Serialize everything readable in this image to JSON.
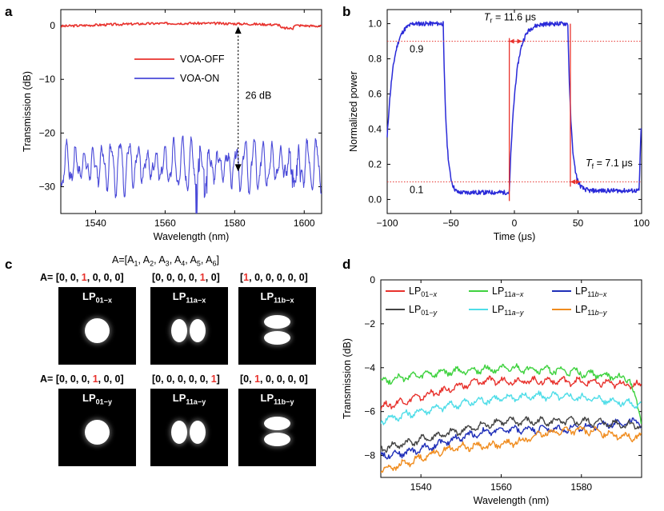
{
  "figure": {
    "panel_labels": [
      "a",
      "b",
      "c",
      "d"
    ]
  },
  "chart_data": [
    {
      "panel": "a",
      "type": "line",
      "xlabel": "Wavelength (nm)",
      "ylabel": "Transmission (dB)",
      "xlim": [
        1530,
        1605
      ],
      "ylim": [
        -35,
        3
      ],
      "xticks": [
        1540,
        1560,
        1580,
        1600
      ],
      "yticks": [
        0,
        -10,
        -20,
        -30
      ],
      "ytick_labels": [
        "0",
        "−10",
        "−20",
        "−30"
      ],
      "legend_position": "upper-middle",
      "series": [
        {
          "name": "VOA-OFF",
          "color": "#e8322d",
          "baseline": 0,
          "pattern": "flat-noisy"
        },
        {
          "name": "VOA-ON",
          "color": "#4a4ad8",
          "baseline": -26,
          "pattern": "oscillating"
        }
      ],
      "annotation": {
        "text": "26 dB",
        "x": 1581,
        "from": 0,
        "to": -27
      }
    },
    {
      "panel": "b",
      "type": "line",
      "xlabel": "Time (μs)",
      "ylabel": "Normalized power",
      "xlim": [
        -100,
        100
      ],
      "ylim": [
        -0.08,
        1.08
      ],
      "xticks": [
        -100,
        -50,
        0,
        50,
        100
      ],
      "xtick_labels": [
        "−100",
        "−50",
        "0",
        "50",
        "100"
      ],
      "yticks": [
        0.0,
        0.2,
        0.4,
        0.6,
        0.8,
        1.0
      ],
      "ytick_labels": [
        "0.0",
        "0.2",
        "0.4",
        "0.6",
        "0.8",
        "1.0"
      ],
      "series": [
        {
          "name": "signal",
          "color": "#2a2ad8"
        }
      ],
      "reference_lines": [
        {
          "value": 0.9,
          "label": "0.9",
          "color": "#e8322d"
        },
        {
          "value": 0.1,
          "label": "0.1",
          "color": "#e8322d"
        }
      ],
      "annotations": [
        {
          "symbol": "T",
          "subscript": "r",
          "value": " = 11.6 μs",
          "x": -4
        },
        {
          "symbol": "T",
          "subscript": "f",
          "value": " = 7.1 μs",
          "x": 44
        }
      ]
    },
    {
      "panel": "d",
      "type": "line",
      "xlabel": "Wavelength (nm)",
      "ylabel": "Transmission (dB)",
      "xlim": [
        1530,
        1595
      ],
      "ylim": [
        -9,
        0
      ],
      "xticks": [
        1540,
        1560,
        1580
      ],
      "yticks": [
        0,
        -2,
        -4,
        -6,
        -8
      ],
      "ytick_labels": [
        "0",
        "−2",
        "−4",
        "−6",
        "−8"
      ],
      "series": [
        {
          "name": "LP01−x",
          "base": "LP",
          "sub": "01",
          "pol": "x",
          "color": "#e8322d"
        },
        {
          "name": "LP11a−x",
          "base": "LP",
          "sub": "11",
          "subi": "a",
          "pol": "x",
          "color": "#3fd23f"
        },
        {
          "name": "LP11b−x",
          "base": "LP",
          "sub": "11",
          "subi": "b",
          "pol": "x",
          "color": "#1f2fb8"
        },
        {
          "name": "LP01−y",
          "base": "LP",
          "sub": "01",
          "pol": "y",
          "color": "#444444"
        },
        {
          "name": "LP11a−y",
          "base": "LP",
          "sub": "11",
          "subi": "a",
          "pol": "y",
          "color": "#4fdde8"
        },
        {
          "name": "LP11b−y",
          "base": "LP",
          "sub": "11",
          "subi": "b",
          "pol": "y",
          "color": "#f08c1e"
        }
      ]
    }
  ],
  "panel_c": {
    "header": {
      "prefix": "A=[",
      "items": [
        "A1",
        "A2",
        "A3",
        "A4",
        "A5",
        "A6"
      ]
    },
    "vector_prefix": "A=",
    "modes": [
      {
        "label": "LP",
        "sub": "01−x",
        "pattern": "round",
        "vector": [
          0,
          0,
          1,
          0,
          0,
          0
        ],
        "on_index": 2,
        "show_prefix": true
      },
      {
        "label": "LP",
        "sub": "11a−x",
        "pattern": "horizontal",
        "vector": [
          0,
          0,
          0,
          0,
          1,
          0
        ],
        "on_index": 4,
        "show_prefix": false
      },
      {
        "label": "LP",
        "sub": "11b−x",
        "pattern": "vertical",
        "vector": [
          1,
          0,
          0,
          0,
          0,
          0
        ],
        "on_index": 0,
        "show_prefix": false
      },
      {
        "label": "LP",
        "sub": "01−y",
        "pattern": "round",
        "vector": [
          0,
          0,
          0,
          1,
          0,
          0
        ],
        "on_index": 3,
        "show_prefix": true
      },
      {
        "label": "LP",
        "sub": "11a−y",
        "pattern": "horizontal",
        "vector": [
          0,
          0,
          0,
          0,
          0,
          1
        ],
        "on_index": 5,
        "show_prefix": false
      },
      {
        "label": "LP",
        "sub": "11b−y",
        "pattern": "vertical",
        "vector": [
          0,
          1,
          0,
          0,
          0,
          0
        ],
        "on_index": 1,
        "show_prefix": false
      }
    ]
  }
}
